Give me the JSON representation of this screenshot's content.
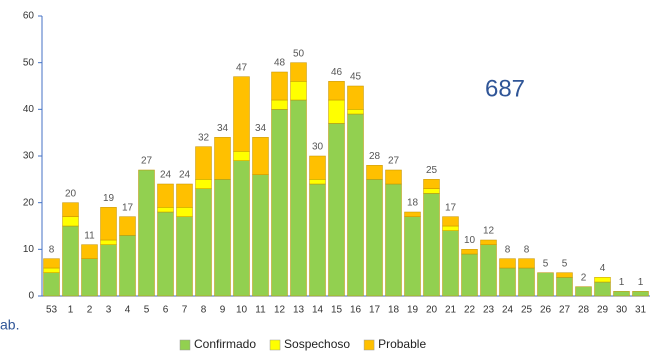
{
  "chart_data": {
    "type": "stacked_bar",
    "annotation": "687",
    "side_note": "ab.",
    "categories": [
      "53",
      "1",
      "2",
      "3",
      "4",
      "5",
      "6",
      "7",
      "8",
      "9",
      "10",
      "11",
      "12",
      "13",
      "14",
      "15",
      "16",
      "17",
      "18",
      "19",
      "20",
      "21",
      "22",
      "23",
      "24",
      "25",
      "26",
      "27",
      "28",
      "29",
      "30",
      "31"
    ],
    "series": [
      {
        "name": "Confirmado",
        "color": "#92d050",
        "values": [
          5,
          15,
          8,
          11,
          13,
          27,
          18,
          17,
          23,
          25,
          29,
          26,
          40,
          42,
          24,
          37,
          39,
          25,
          24,
          17,
          22,
          14,
          9,
          11,
          6,
          6,
          5,
          4,
          2,
          3,
          1,
          1
        ]
      },
      {
        "name": "Sospechoso",
        "color": "#ffff00",
        "values": [
          1,
          2,
          0,
          1,
          0,
          0,
          1,
          2,
          2,
          0,
          2,
          0,
          2,
          4,
          1,
          5,
          1,
          0,
          0,
          0,
          1,
          1,
          0,
          0,
          0,
          0,
          0,
          0,
          0,
          1,
          0,
          0
        ]
      },
      {
        "name": "Probable",
        "color": "#ffc000",
        "values": [
          2,
          3,
          3,
          7,
          4,
          0,
          5,
          5,
          7,
          9,
          16,
          8,
          6,
          4,
          5,
          4,
          5,
          3,
          3,
          1,
          2,
          2,
          1,
          1,
          2,
          2,
          0,
          1,
          0,
          0,
          0,
          0
        ]
      }
    ],
    "totals": [
      8,
      20,
      11,
      19,
      17,
      27,
      24,
      24,
      32,
      34,
      47,
      34,
      48,
      50,
      30,
      46,
      45,
      28,
      27,
      18,
      25,
      17,
      10,
      12,
      8,
      8,
      5,
      5,
      2,
      4,
      1,
      1
    ],
    "ylim": [
      0,
      60
    ],
    "yticks": [
      0,
      10,
      20,
      30,
      40,
      50,
      60
    ],
    "legend": "bottom"
  }
}
